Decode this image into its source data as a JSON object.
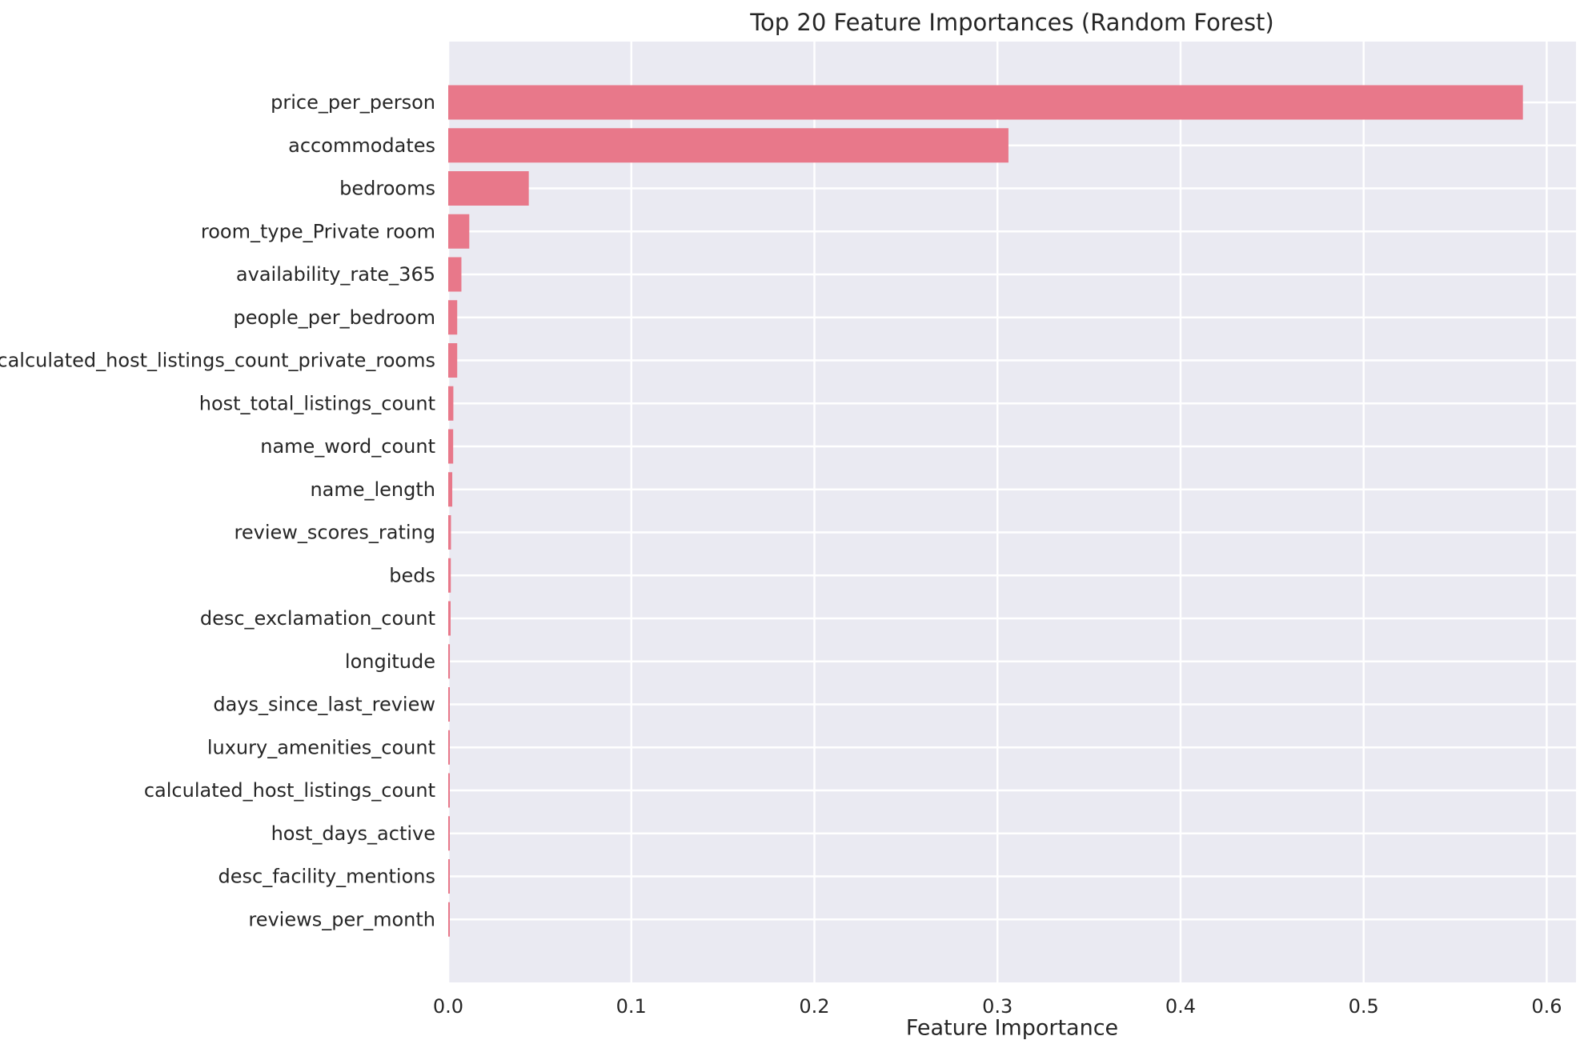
{
  "chart_data": {
    "type": "bar",
    "orientation": "horizontal",
    "title": "Top 20 Feature Importances (Random Forest)",
    "xlabel": "Feature Importance",
    "ylabel": "",
    "xlim": [
      0,
      0.616
    ],
    "xticks": [
      0.0,
      0.1,
      0.2,
      0.3,
      0.4,
      0.5,
      0.6
    ],
    "xtick_labels": [
      "0.0",
      "0.1",
      "0.2",
      "0.3",
      "0.4",
      "0.5",
      "0.6"
    ],
    "grid": true,
    "bar_color": "#e8788a",
    "background_color": "#eaeaf2",
    "categories": [
      "price_per_person",
      "accommodates",
      "bedrooms",
      "room_type_Private room",
      "availability_rate_365",
      "people_per_bedroom",
      "calculated_host_listings_count_private_rooms",
      "host_total_listings_count",
      "name_word_count",
      "name_length",
      "review_scores_rating",
      "beds",
      "desc_exclamation_count",
      "longitude",
      "days_since_last_review",
      "luxury_amenities_count",
      "calculated_host_listings_count",
      "host_days_active",
      "desc_facility_mentions",
      "reviews_per_month"
    ],
    "values": [
      0.587,
      0.306,
      0.044,
      0.0115,
      0.0072,
      0.0049,
      0.0049,
      0.0028,
      0.0027,
      0.0022,
      0.0015,
      0.0014,
      0.0013,
      0.0009,
      0.0008,
      0.0007,
      0.0007,
      0.0006,
      0.0006,
      0.0005
    ]
  }
}
